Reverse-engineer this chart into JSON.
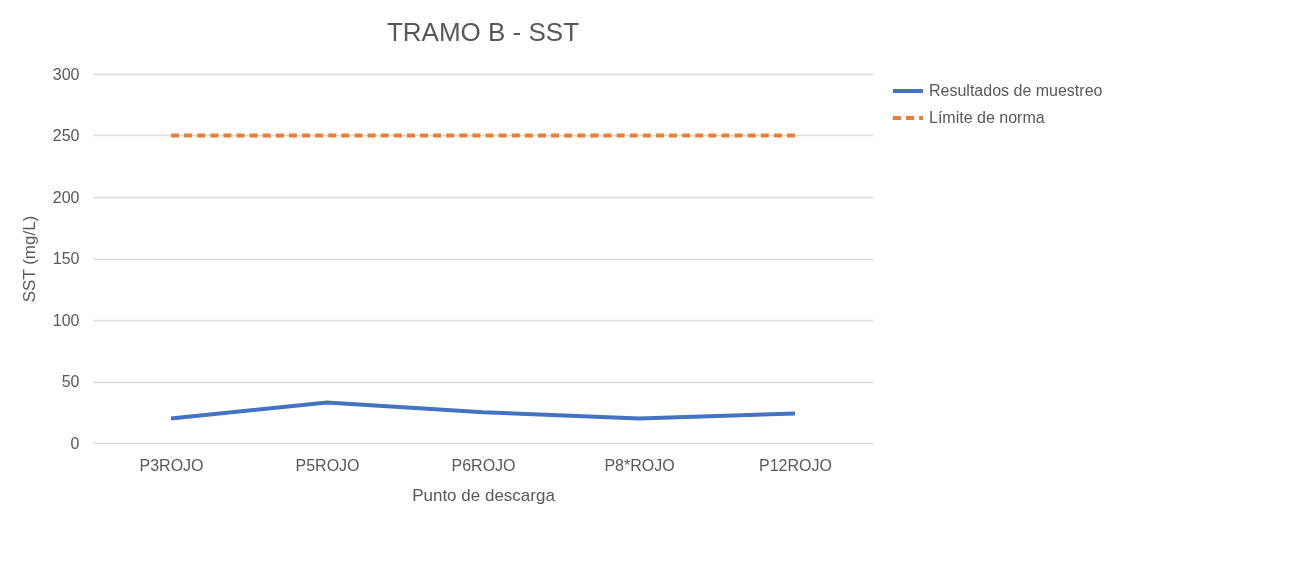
{
  "chart_data": {
    "type": "line",
    "title": "TRAMO B - SST",
    "xlabel": "Punto de descarga",
    "ylabel": "SST (mg/L)",
    "categories": [
      "P3ROJO",
      "P5ROJO",
      "P6ROJO",
      "P8*ROJO",
      "P12ROJO"
    ],
    "series": [
      {
        "name": "Resultados de muestreo",
        "color": "#4472c4",
        "line_style": "solid",
        "values": [
          20,
          33,
          25,
          20,
          24
        ]
      },
      {
        "name": "Límite de norma",
        "color": "#ed7d31",
        "line_style": "dashed",
        "values": [
          250,
          250,
          250,
          250,
          250
        ]
      }
    ],
    "ylim": [
      0,
      300
    ],
    "yticks": [
      0,
      50,
      100,
      150,
      200,
      250,
      300
    ],
    "grid": "y",
    "legend": "right",
    "marker": "none"
  }
}
